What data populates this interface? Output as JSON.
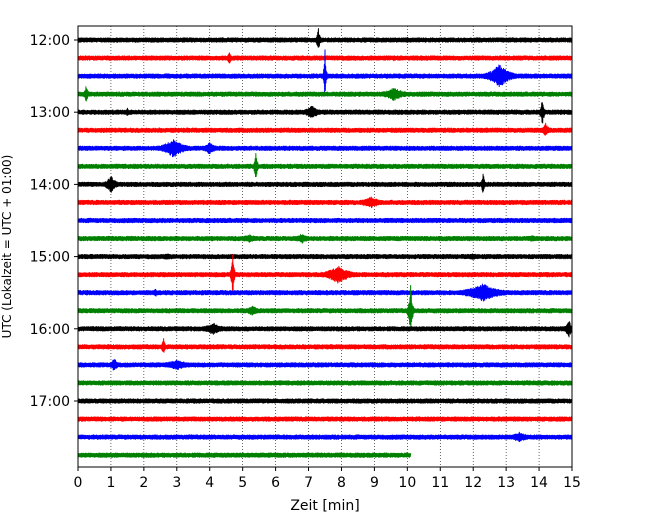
{
  "chart_data": {
    "type": "line",
    "title": "",
    "xlabel": "Zeit  [min]",
    "ylabel": "UTC (Lokalzeit = UTC + 01:00)",
    "xlim": [
      0,
      15
    ],
    "x_ticks": [
      "0",
      "1",
      "2",
      "3",
      "4",
      "5",
      "6",
      "7",
      "8",
      "9",
      "10",
      "11",
      "12",
      "13",
      "14",
      "15"
    ],
    "y_tick_labels": [
      "12:00",
      "13:00",
      "14:00",
      "15:00",
      "16:00",
      "17:00"
    ],
    "grid": "vertical-dotted",
    "colors_cycle": [
      "#000000",
      "#ff0000",
      "#0000ff",
      "#008000"
    ],
    "series": [
      {
        "start": "12:00",
        "color": "#000000",
        "end_min": 15,
        "events": [
          {
            "t": 7.3,
            "amp": 12,
            "w": 0.05
          },
          {
            "t": 10.0,
            "amp": 3,
            "w": 0.1
          }
        ]
      },
      {
        "start": "12:15",
        "color": "#ff0000",
        "end_min": 15,
        "events": [
          {
            "t": 4.6,
            "amp": 8,
            "w": 0.05
          },
          {
            "t": 9.6,
            "amp": 3,
            "w": 0.1
          }
        ]
      },
      {
        "start": "12:30",
        "color": "#0000ff",
        "end_min": 15,
        "events": [
          {
            "t": 7.5,
            "amp": 28,
            "w": 0.03
          },
          {
            "t": 12.8,
            "amp": 12,
            "w": 0.3
          }
        ]
      },
      {
        "start": "12:45",
        "color": "#008000",
        "end_min": 15,
        "events": [
          {
            "t": 0.25,
            "amp": 10,
            "w": 0.05
          },
          {
            "t": 9.6,
            "amp": 7,
            "w": 0.3
          }
        ]
      },
      {
        "start": "13:00",
        "color": "#000000",
        "end_min": 15,
        "events": [
          {
            "t": 1.5,
            "amp": 5,
            "w": 0.05
          },
          {
            "t": 7.1,
            "amp": 7,
            "w": 0.2
          },
          {
            "t": 14.1,
            "amp": 14,
            "w": 0.05
          }
        ]
      },
      {
        "start": "13:15",
        "color": "#ff0000",
        "end_min": 15,
        "events": [
          {
            "t": 14.2,
            "amp": 7,
            "w": 0.1
          }
        ]
      },
      {
        "start": "13:30",
        "color": "#0000ff",
        "end_min": 15,
        "events": [
          {
            "t": 2.9,
            "amp": 10,
            "w": 0.3
          },
          {
            "t": 4.0,
            "amp": 6,
            "w": 0.2
          }
        ]
      },
      {
        "start": "13:45",
        "color": "#008000",
        "end_min": 15,
        "events": [
          {
            "t": 5.4,
            "amp": 16,
            "w": 0.04
          }
        ]
      },
      {
        "start": "14:00",
        "color": "#000000",
        "end_min": 15,
        "events": [
          {
            "t": 1.0,
            "amp": 9,
            "w": 0.15
          },
          {
            "t": 12.3,
            "amp": 13,
            "w": 0.04
          }
        ]
      },
      {
        "start": "14:15",
        "color": "#ff0000",
        "end_min": 15,
        "events": [
          {
            "t": 8.9,
            "amp": 6,
            "w": 0.3
          }
        ]
      },
      {
        "start": "14:30",
        "color": "#0000ff",
        "end_min": 15,
        "events": []
      },
      {
        "start": "14:45",
        "color": "#008000",
        "end_min": 15,
        "events": [
          {
            "t": 5.2,
            "amp": 4,
            "w": 0.3
          },
          {
            "t": 6.8,
            "amp": 5,
            "w": 0.2
          },
          {
            "t": 13.8,
            "amp": 3,
            "w": 0.3
          }
        ]
      },
      {
        "start": "15:00",
        "color": "#000000",
        "end_min": 15,
        "events": [
          {
            "t": 2.7,
            "amp": 3,
            "w": 0.3
          },
          {
            "t": 12.0,
            "amp": 3,
            "w": 0.3
          }
        ]
      },
      {
        "start": "15:15",
        "color": "#ff0000",
        "end_min": 15,
        "events": [
          {
            "t": 4.7,
            "amp": 22,
            "w": 0.04
          },
          {
            "t": 7.9,
            "amp": 9,
            "w": 0.35
          }
        ]
      },
      {
        "start": "15:30",
        "color": "#0000ff",
        "end_min": 15,
        "events": [
          {
            "t": 2.35,
            "amp": 5,
            "w": 0.05
          },
          {
            "t": 12.3,
            "amp": 9,
            "w": 0.5
          }
        ]
      },
      {
        "start": "15:45",
        "color": "#008000",
        "end_min": 15,
        "events": [
          {
            "t": 5.3,
            "amp": 5,
            "w": 0.2
          },
          {
            "t": 10.1,
            "amp": 26,
            "w": 0.05
          }
        ]
      },
      {
        "start": "16:00",
        "color": "#000000",
        "end_min": 15,
        "events": [
          {
            "t": 4.1,
            "amp": 6,
            "w": 0.3
          },
          {
            "t": 14.9,
            "amp": 9,
            "w": 0.1
          }
        ]
      },
      {
        "start": "16:15",
        "color": "#ff0000",
        "end_min": 15,
        "events": [
          {
            "t": 2.6,
            "amp": 9,
            "w": 0.05
          }
        ]
      },
      {
        "start": "16:30",
        "color": "#0000ff",
        "end_min": 15,
        "events": [
          {
            "t": 1.1,
            "amp": 7,
            "w": 0.1
          },
          {
            "t": 3.0,
            "amp": 5,
            "w": 0.4
          }
        ]
      },
      {
        "start": "16:45",
        "color": "#008000",
        "end_min": 15,
        "events": []
      },
      {
        "start": "17:00",
        "color": "#000000",
        "end_min": 15,
        "events": []
      },
      {
        "start": "17:15",
        "color": "#ff0000",
        "end_min": 15,
        "events": []
      },
      {
        "start": "17:30",
        "color": "#0000ff",
        "end_min": 15,
        "events": [
          {
            "t": 13.4,
            "amp": 5,
            "w": 0.3
          }
        ]
      },
      {
        "start": "17:45",
        "color": "#008000",
        "end_min": 10.1,
        "events": []
      }
    ]
  }
}
